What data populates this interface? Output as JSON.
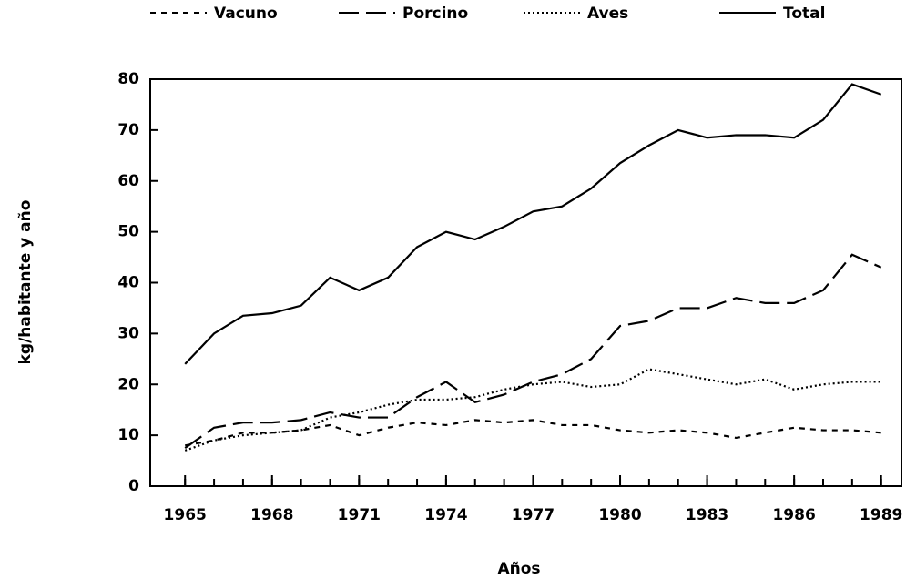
{
  "chart_data": {
    "type": "line",
    "xlabel": "Años",
    "ylabel": "kg/habitante y año",
    "x": [
      1965,
      1966,
      1967,
      1968,
      1969,
      1970,
      1971,
      1972,
      1973,
      1974,
      1975,
      1976,
      1977,
      1978,
      1979,
      1980,
      1981,
      1982,
      1983,
      1984,
      1985,
      1986,
      1987,
      1988,
      1989
    ],
    "series": [
      {
        "name": "Vacuno",
        "color": "#000000",
        "linestyle": "short-dash",
        "values": [
          8,
          9,
          10.5,
          10.5,
          11,
          12,
          10,
          11.5,
          12.5,
          12,
          13,
          12.5,
          13,
          12,
          12,
          11,
          10.5,
          11,
          10.5,
          9.5,
          10.5,
          11.5,
          11,
          11,
          10.5
        ]
      },
      {
        "name": "Porcino",
        "color": "#000000",
        "linestyle": "long-dash",
        "values": [
          7.5,
          11.5,
          12.5,
          12.5,
          13,
          14.5,
          13.5,
          13.5,
          17.5,
          20.5,
          16.5,
          18,
          20.5,
          22,
          25,
          31.5,
          32.5,
          35,
          35,
          37,
          36,
          36,
          38.5,
          45.5,
          43
        ]
      },
      {
        "name": "Aves",
        "color": "#000000",
        "linestyle": "dotted",
        "values": [
          7,
          9,
          10,
          10.5,
          11,
          13.5,
          14.5,
          16,
          17,
          17,
          17.5,
          19,
          20,
          20.5,
          19.5,
          20,
          23,
          22,
          21,
          20,
          21,
          19,
          20,
          20.5,
          20.5
        ]
      },
      {
        "name": "Total",
        "color": "#000000",
        "linestyle": "solid",
        "values": [
          24,
          30,
          33.5,
          34,
          35.5,
          41,
          38.5,
          41,
          47,
          50,
          48.5,
          51,
          54,
          55,
          58.5,
          63.5,
          67,
          70,
          68.5,
          69,
          69,
          68.5,
          72,
          79,
          77
        ]
      }
    ],
    "xlim": [
      1963.8,
      1989.7
    ],
    "xticks": [
      1965,
      1968,
      1971,
      1974,
      1977,
      1980,
      1983,
      1986,
      1989
    ],
    "ylim": [
      0,
      80
    ],
    "yticks": [
      0,
      10,
      20,
      30,
      40,
      50,
      60,
      70,
      80
    ],
    "grid": false,
    "legend": "top"
  }
}
